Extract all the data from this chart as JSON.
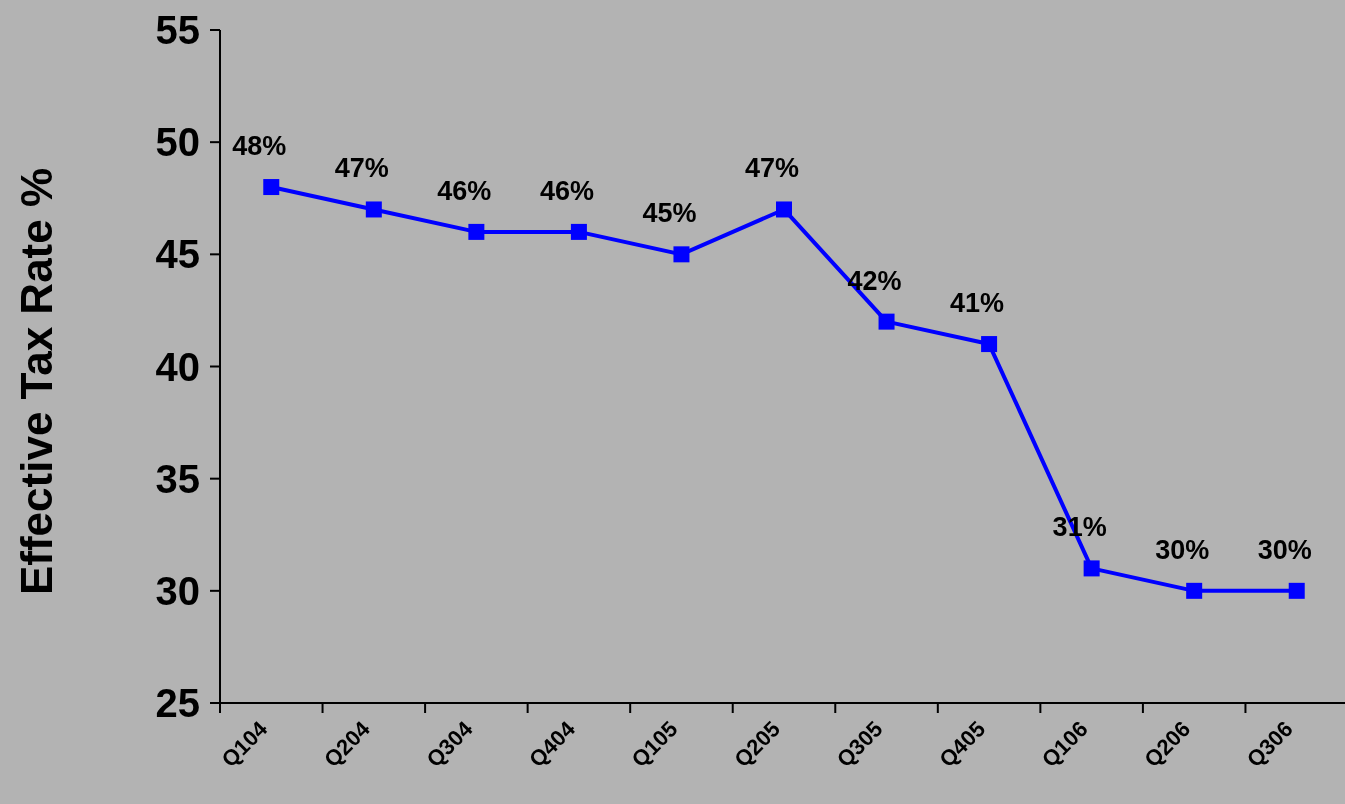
{
  "chart_data": {
    "type": "line",
    "ylabel": "Effective Tax Rate %",
    "categories": [
      "Q104",
      "Q204",
      "Q304",
      "Q404",
      "Q105",
      "Q205",
      "Q305",
      "Q405",
      "Q106",
      "Q206",
      "Q306"
    ],
    "series": [
      {
        "color": "#0000ff",
        "values": [
          48,
          47,
          46,
          46,
          45,
          47,
          42,
          41,
          31,
          30,
          30
        ],
        "value_labels": [
          "48%",
          "47%",
          "46%",
          "46%",
          "45%",
          "47%",
          "42%",
          "41%",
          "31%",
          "30%",
          "30%"
        ]
      }
    ],
    "ylim": [
      25,
      55
    ],
    "yticks": [
      25,
      30,
      35,
      40,
      45,
      50,
      55
    ],
    "grid": false,
    "marker": "square",
    "line_style": "solid"
  }
}
